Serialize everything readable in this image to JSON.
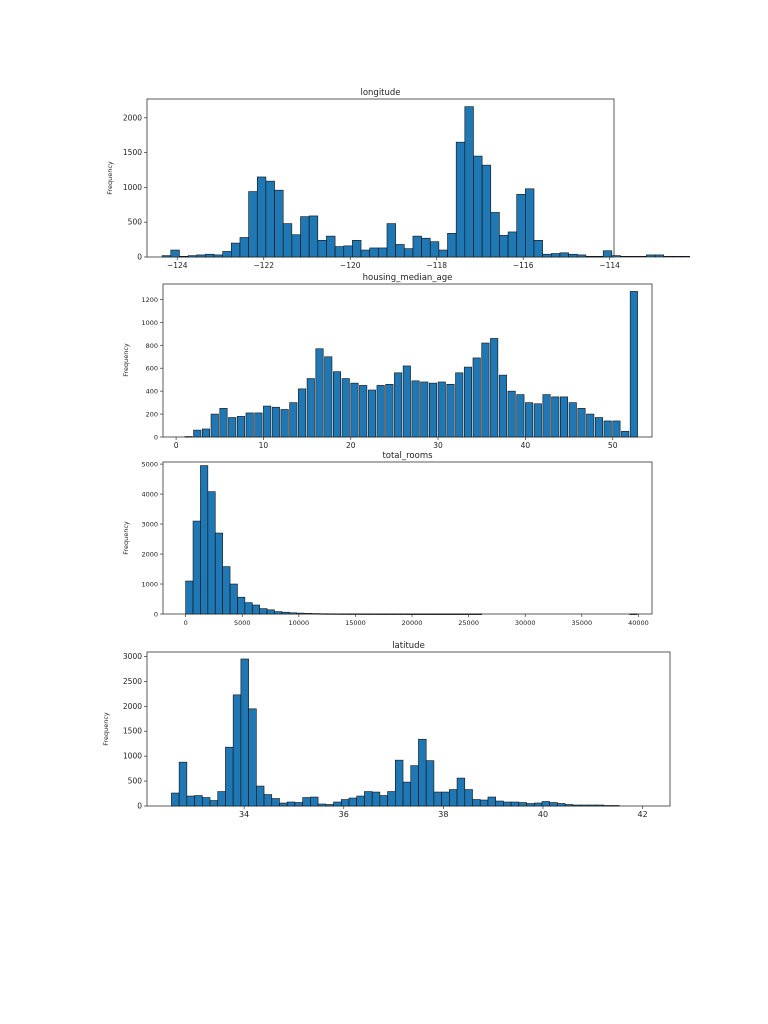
{
  "page": {
    "background": "#ffffff",
    "bar_color": "#1f77b4",
    "edge_color": "#111111"
  },
  "chart_data": [
    {
      "type": "bar",
      "title": "longitude",
      "ylabel": "Frequency",
      "xlim": [
        -124.7,
        -113.9
      ],
      "ylim": [
        0,
        2270
      ],
      "xticks": [
        -124,
        -122,
        -120,
        -118,
        -116,
        -114
      ],
      "yticks": [
        0,
        500,
        1000,
        1500,
        2000
      ],
      "bin_start": -124.35,
      "bin_width": 0.2,
      "values": [
        20,
        100,
        10,
        20,
        30,
        40,
        30,
        80,
        200,
        280,
        940,
        1150,
        1090,
        960,
        480,
        320,
        580,
        590,
        240,
        300,
        150,
        160,
        240,
        100,
        130,
        130,
        480,
        180,
        120,
        300,
        270,
        220,
        100,
        340,
        1650,
        2160,
        1450,
        1320,
        640,
        310,
        360,
        900,
        980,
        240,
        40,
        50,
        60,
        40,
        30,
        10,
        10,
        90,
        20,
        10,
        10,
        10,
        30,
        30,
        10,
        10,
        10
      ]
    },
    {
      "type": "bar",
      "title": "housing_median_age",
      "ylabel": "Frequency",
      "xlim": [
        -1.5,
        54.5
      ],
      "ylim": [
        0,
        1335
      ],
      "xticks": [
        0,
        10,
        20,
        30,
        40,
        50
      ],
      "yticks": [
        0,
        200,
        400,
        600,
        800,
        1000,
        1200
      ],
      "bin_start": 1,
      "bin_width": 0.85,
      "bars": [
        [
          1,
          4
        ],
        [
          2,
          60
        ],
        [
          3,
          70
        ],
        [
          4,
          200
        ],
        [
          5,
          250
        ],
        [
          6,
          170
        ],
        [
          7,
          180
        ],
        [
          8,
          210
        ],
        [
          9,
          210
        ],
        [
          10,
          270
        ],
        [
          11,
          260
        ],
        [
          12,
          240
        ],
        [
          13,
          300
        ],
        [
          14,
          420
        ],
        [
          15,
          510
        ],
        [
          16,
          770
        ],
        [
          17,
          700
        ],
        [
          18,
          570
        ],
        [
          19,
          510
        ],
        [
          20,
          470
        ],
        [
          21,
          450
        ],
        [
          22,
          410
        ],
        [
          23,
          450
        ],
        [
          24,
          460
        ],
        [
          25,
          560
        ],
        [
          26,
          620
        ],
        [
          27,
          490
        ],
        [
          28,
          480
        ],
        [
          29,
          470
        ],
        [
          30,
          480
        ],
        [
          31,
          460
        ],
        [
          32,
          560
        ],
        [
          33,
          610
        ],
        [
          34,
          690
        ],
        [
          35,
          820
        ],
        [
          36,
          860
        ],
        [
          37,
          540
        ],
        [
          38,
          400
        ],
        [
          39,
          370
        ],
        [
          40,
          300
        ],
        [
          41,
          290
        ],
        [
          42,
          370
        ],
        [
          43,
          350
        ],
        [
          44,
          350
        ],
        [
          45,
          300
        ],
        [
          46,
          250
        ],
        [
          47,
          200
        ],
        [
          48,
          170
        ],
        [
          49,
          140
        ],
        [
          50,
          140
        ],
        [
          51,
          50
        ],
        [
          52,
          1270
        ]
      ]
    },
    {
      "type": "bar",
      "title": "total_rooms",
      "ylabel": "Frequency",
      "xlim": [
        -2000,
        41200
      ],
      "ylim": [
        0,
        5070
      ],
      "xticks": [
        0,
        5000,
        10000,
        15000,
        20000,
        25000,
        30000,
        35000,
        40000
      ],
      "yticks": [
        0,
        1000,
        2000,
        3000,
        4000,
        5000
      ],
      "bin_start": 0,
      "bin_width": 654,
      "values": [
        1100,
        3100,
        4950,
        4080,
        2700,
        1580,
        1000,
        560,
        380,
        300,
        180,
        140,
        80,
        60,
        40,
        30,
        20,
        15,
        10,
        8,
        6,
        5,
        4,
        4,
        3,
        3,
        2,
        2,
        2,
        2,
        1,
        1,
        1,
        1,
        1,
        1,
        1,
        1,
        1,
        1,
        0,
        0,
        0,
        0,
        0,
        0,
        0,
        0,
        0,
        0,
        0,
        0,
        0,
        0,
        0,
        0,
        0,
        0,
        0,
        0,
        1
      ]
    },
    {
      "type": "bar",
      "title": "latitude",
      "ylabel": "Frequency",
      "xlim": [
        32.05,
        42.55
      ],
      "ylim": [
        0,
        3090
      ],
      "xticks": [
        34,
        36,
        38,
        40,
        42
      ],
      "yticks": [
        0,
        500,
        1000,
        1500,
        2000,
        2500,
        3000
      ],
      "bin_start": 32.54,
      "bin_width": 0.155,
      "values": [
        260,
        880,
        200,
        210,
        170,
        110,
        290,
        1180,
        2230,
        2950,
        1950,
        400,
        230,
        150,
        60,
        80,
        70,
        170,
        180,
        40,
        30,
        80,
        130,
        160,
        200,
        290,
        280,
        210,
        290,
        920,
        480,
        810,
        1340,
        910,
        280,
        280,
        330,
        560,
        330,
        130,
        120,
        180,
        100,
        80,
        80,
        70,
        50,
        60,
        90,
        70,
        50,
        30,
        20,
        20,
        20,
        20,
        10,
        10
      ]
    }
  ]
}
